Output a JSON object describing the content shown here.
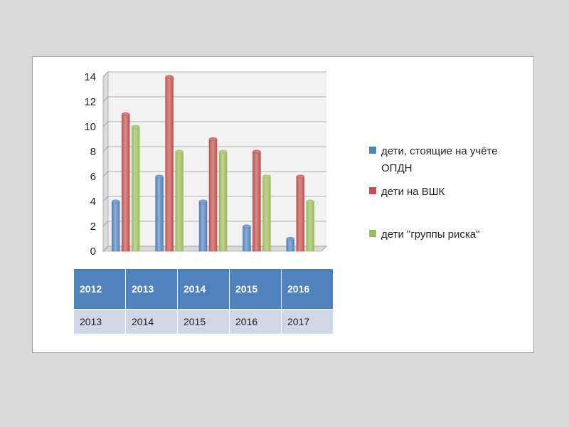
{
  "chart_data": {
    "type": "bar",
    "categories": [
      "2012",
      "2013",
      "2014",
      "2015",
      "2016"
    ],
    "series": [
      {
        "name": "дети, стоящие на учёте ОПДН",
        "values": [
          4,
          6,
          4,
          2,
          1
        ],
        "color": "#4f81bd"
      },
      {
        "name": "дети на ВШК",
        "values": [
          11,
          14,
          9,
          8,
          6
        ],
        "color": "#c0504d"
      },
      {
        "name": "дети \"группы риска\"",
        "values": [
          10,
          8,
          8,
          6,
          4
        ],
        "color": "#9bbb59"
      }
    ],
    "ylim": [
      0,
      14
    ],
    "yticks": [
      0,
      2,
      4,
      6,
      8,
      10,
      12,
      14
    ],
    "grid": true,
    "legend_position": "right",
    "legend_lines": [
      [
        "дети, стоящие на учёте",
        "ОПДН"
      ],
      [
        "дети на ВШК"
      ],
      [
        "дети \"группы риска\""
      ]
    ]
  },
  "table": {
    "header": [
      "2012",
      "2013",
      "2014",
      "2015",
      "2016"
    ],
    "row": [
      "2013",
      "2014",
      "2015",
      "2016",
      "2017"
    ]
  }
}
